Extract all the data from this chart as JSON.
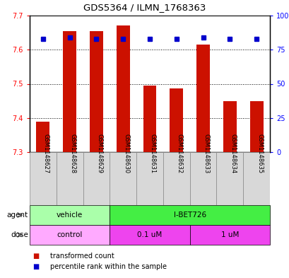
{
  "title": "GDS5364 / ILMN_1768363",
  "samples": [
    "GSM1148627",
    "GSM1148628",
    "GSM1148629",
    "GSM1148630",
    "GSM1148631",
    "GSM1148632",
    "GSM1148633",
    "GSM1148634",
    "GSM1148635"
  ],
  "bar_values": [
    7.39,
    7.655,
    7.655,
    7.67,
    7.495,
    7.487,
    7.615,
    7.45,
    7.45
  ],
  "bar_bottom": 7.3,
  "percentile_values": [
    83,
    84,
    83,
    83,
    83,
    83,
    84,
    83,
    83
  ],
  "ylim_left": [
    7.3,
    7.7
  ],
  "ylim_right": [
    0,
    100
  ],
  "yticks_left": [
    7.3,
    7.4,
    7.5,
    7.6,
    7.7
  ],
  "yticks_right": [
    0,
    25,
    50,
    75,
    100
  ],
  "bar_color": "#cc1100",
  "percentile_color": "#0000cc",
  "agent_vehicle_color": "#aaffaa",
  "agent_ibet_color": "#44ee44",
  "dose_control_color": "#ffaaff",
  "dose_um_color": "#ee44ee",
  "sample_box_color": "#d8d8d8",
  "legend_items": [
    "transformed count",
    "percentile rank within the sample"
  ],
  "legend_colors": [
    "#cc1100",
    "#0000cc"
  ]
}
